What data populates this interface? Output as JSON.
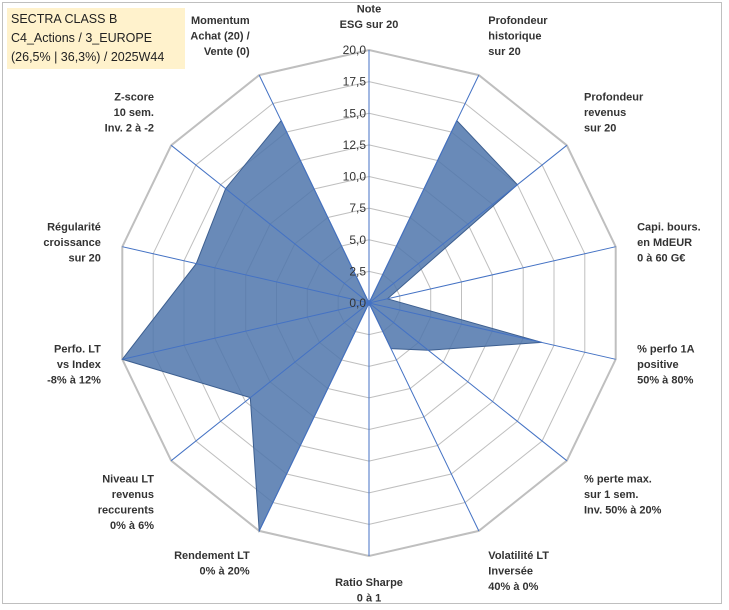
{
  "chart_data": {
    "type": "radar",
    "title_lines": [
      "SECTRA CLASS B",
      "C4_Actions / 3_EUROPE",
      "(26,5% | 36,3%) / 2025W44"
    ],
    "r_min": 0,
    "r_max": 20,
    "ticks": [
      "0,0",
      "2,5",
      "5,0",
      "7,5",
      "10,0",
      "12,5",
      "15,0",
      "17,5",
      "20,0"
    ],
    "axes": [
      {
        "lines": [
          "Note",
          "ESG sur 20"
        ]
      },
      {
        "lines": [
          "Profondeur",
          "historique",
          "sur 20"
        ]
      },
      {
        "lines": [
          "Profondeur",
          "revenus",
          "sur 20"
        ]
      },
      {
        "lines": [
          "Capi. bours.",
          "en MdEUR",
          "0 à 60 G€"
        ]
      },
      {
        "lines": [
          "% perfo 1A",
          "positive",
          "50% à 80%"
        ]
      },
      {
        "lines": [
          "% perte max.",
          "sur 1 sem.",
          "Inv. 50% à 20%"
        ]
      },
      {
        "lines": [
          "Volatilité LT",
          "Inversée",
          "40% à 0%"
        ]
      },
      {
        "lines": [
          "Ratio Sharpe",
          "0 à 1"
        ]
      },
      {
        "lines": [
          "Rendement LT",
          "0% à 20%"
        ]
      },
      {
        "lines": [
          "Niveau LT",
          "revenus",
          "reccurents",
          "0% à 6%"
        ]
      },
      {
        "lines": [
          "Perfo. LT",
          "vs Index",
          "-8% à 12%"
        ]
      },
      {
        "lines": [
          "Régularité",
          "croissance",
          "sur 20"
        ]
      },
      {
        "lines": [
          "Z-score",
          "10 sem.",
          "Inv. 2 à -2"
        ]
      },
      {
        "lines": [
          "Momentum",
          "Achat (20) /",
          "Vente (0)"
        ]
      }
    ],
    "series": [
      {
        "name": "SECTRA CLASS B",
        "color": "#4f76ac",
        "values": [
          0,
          16,
          15,
          1.5,
          14,
          6,
          4,
          0,
          20,
          12,
          20,
          14,
          14.5,
          16
        ]
      }
    ],
    "grid_color": "#bfbfbf",
    "axis_color": "#4472c4"
  }
}
